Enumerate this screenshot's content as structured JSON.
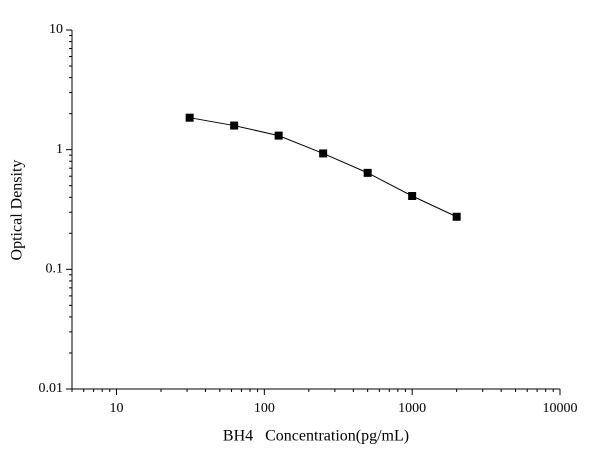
{
  "chart_data": {
    "type": "line",
    "x_label": "BH4   Concentration(pg/mL)",
    "y_label": "Optical Density",
    "x": [
      31.25,
      62.5,
      125,
      250,
      500,
      1000,
      2000
    ],
    "series": [
      {
        "color": "#000000",
        "values": [
          1.85,
          1.59,
          1.31,
          0.93,
          0.64,
          0.41,
          0.275
        ]
      }
    ],
    "xscale": "log",
    "yscale": "log",
    "xlim": [
      5,
      10000
    ],
    "ylim": [
      0.01,
      10
    ],
    "xticks": [
      10,
      100,
      1000,
      10000
    ],
    "yticks": [
      0.01,
      0.1,
      1,
      10
    ],
    "grid": false
  }
}
